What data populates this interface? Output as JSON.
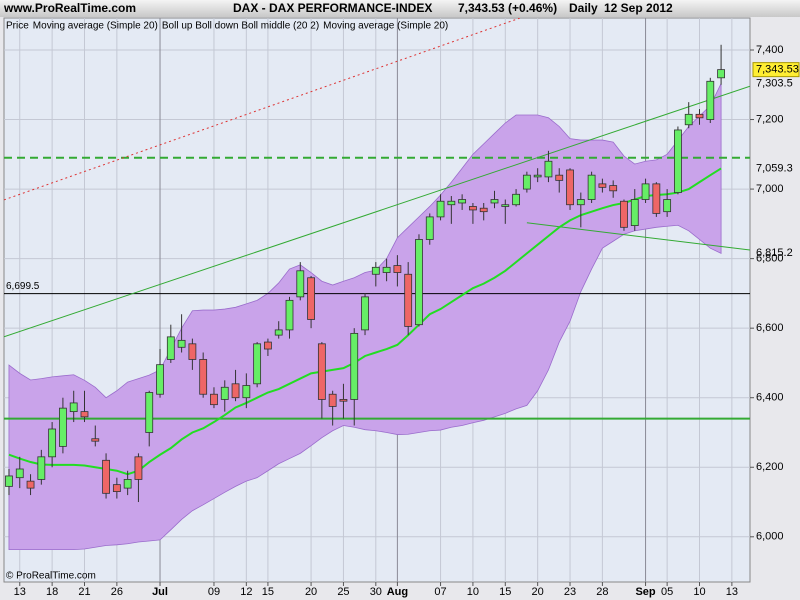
{
  "chart_data": {
    "type": "candlestick",
    "site": "www.ProRealTime.com",
    "title": "DAX - DAX PERFORMANCE-INDEX",
    "quote": "7,343.53 (+0.46%)",
    "period": "Daily",
    "date": "12 Sep 2012",
    "footer": "© ProRealTime.com",
    "legend": [
      {
        "name": "Price",
        "color": "#000000"
      },
      {
        "name": "Moving average (Simple 20)",
        "color": "#e05050"
      },
      {
        "name": "Boll up Boll down Boll middle (20 2)",
        "color": "#8a2be2"
      },
      {
        "name": "Moving average (Simple 20)",
        "color": "#22cc22"
      }
    ],
    "open": [
      6145,
      6170,
      6160,
      6165,
      6230,
      6260,
      6360,
      6360,
      6282,
      6220,
      6150,
      6140,
      6230,
      6300,
      6410,
      6510,
      6545,
      6555,
      6510,
      6410,
      6395,
      6440,
      6400,
      6440,
      6560,
      6580,
      6595,
      6690,
      6745,
      6555,
      6410,
      6395,
      6395,
      6595,
      6755,
      6760,
      6780,
      6755,
      6610,
      6855,
      6920,
      6955,
      6960,
      6950,
      6945,
      6960,
      6950,
      6955,
      7000,
      7035,
      7035,
      7040,
      7055,
      6955,
      6970,
      7015,
      7010,
      6965,
      6895,
      6970,
      7015,
      6935,
      6990,
      7185,
      7215,
      7200,
      7320
    ],
    "high": [
      6195,
      6230,
      6180,
      6250,
      6330,
      6400,
      6420,
      6420,
      6320,
      6240,
      6170,
      6190,
      6240,
      6420,
      6540,
      6610,
      6640,
      6570,
      6530,
      6430,
      6450,
      6480,
      6470,
      6560,
      6570,
      6620,
      6690,
      6790,
      6750,
      6560,
      6420,
      6440,
      6600,
      6700,
      6790,
      6800,
      6810,
      6790,
      6870,
      6930,
      6985,
      6980,
      6985,
      6960,
      6960,
      6995,
      6970,
      7000,
      7050,
      7060,
      7110,
      7060,
      7060,
      6990,
      7050,
      7030,
      7025,
      6970,
      7000,
      7030,
      7020,
      7000,
      7180,
      7250,
      7230,
      7320,
      7415
    ],
    "low": [
      6120,
      6140,
      6120,
      6150,
      6200,
      6240,
      6330,
      6330,
      6260,
      6110,
      6110,
      6120,
      6100,
      6260,
      6400,
      6500,
      6530,
      6480,
      6400,
      6370,
      6360,
      6390,
      6370,
      6430,
      6520,
      6570,
      6570,
      6680,
      6600,
      6340,
      6320,
      6340,
      6320,
      6580,
      6720,
      6735,
      6720,
      6580,
      6605,
      6840,
      6910,
      6900,
      6940,
      6900,
      6910,
      6945,
      6900,
      6950,
      6990,
      7020,
      7020,
      6990,
      6940,
      6890,
      6960,
      6990,
      6975,
      6880,
      6880,
      6960,
      6920,
      6920,
      6985,
      7175,
      7185,
      7190,
      7300
    ],
    "close": [
      6175,
      6195,
      6140,
      6230,
      6310,
      6370,
      6385,
      6345,
      6275,
      6125,
      6130,
      6165,
      6165,
      6415,
      6495,
      6575,
      6565,
      6510,
      6410,
      6380,
      6430,
      6400,
      6435,
      6555,
      6540,
      6595,
      6680,
      6765,
      6625,
      6395,
      6375,
      6390,
      6585,
      6690,
      6775,
      6775,
      6760,
      6605,
      6855,
      6920,
      6965,
      6965,
      6970,
      6940,
      6935,
      6970,
      6955,
      6985,
      7040,
      7040,
      7080,
      7025,
      6955,
      6970,
      7040,
      7005,
      6995,
      6890,
      6970,
      7015,
      6930,
      6970,
      7170,
      7215,
      7205,
      7310,
      7343.53
    ],
    "up_color": "#66ee66",
    "down_color": "#ee6666",
    "bollinger": {
      "color": "#c9a3ea",
      "upper": [
        6494,
        6470,
        6451,
        6455,
        6460,
        6463,
        6466,
        6450,
        6430,
        6400,
        6420,
        6445,
        6455,
        6465,
        6480,
        6540,
        6600,
        6650,
        6652,
        6652,
        6655,
        6660,
        6670,
        6680,
        6700,
        6730,
        6770,
        6782,
        6760,
        6735,
        6724,
        6735,
        6745,
        6760,
        6767,
        6800,
        6860,
        6890,
        6920,
        6950,
        6983,
        7020,
        7060,
        7100,
        7130,
        7160,
        7190,
        7213,
        7213,
        7213,
        7205,
        7180,
        7145,
        7141,
        7141,
        7141,
        7135,
        7095,
        7072,
        7080,
        7084,
        7100,
        7140,
        7180,
        7210,
        7240,
        7303.5
      ],
      "lower": [
        5963,
        5963,
        5963,
        5963,
        5963,
        5963,
        5963,
        5965,
        5970,
        5975,
        5977,
        5980,
        5985,
        5988,
        5991,
        6020,
        6050,
        6075,
        6092,
        6110,
        6128,
        6145,
        6160,
        6170,
        6190,
        6210,
        6225,
        6240,
        6262,
        6285,
        6305,
        6320,
        6315,
        6308,
        6305,
        6300,
        6294,
        6295,
        6300,
        6305,
        6307,
        6315,
        6320,
        6328,
        6335,
        6345,
        6355,
        6368,
        6378,
        6420,
        6480,
        6560,
        6620,
        6705,
        6770,
        6830,
        6850,
        6870,
        6880,
        6885,
        6890,
        6893,
        6896,
        6880,
        6855,
        6830,
        6815.2
      ]
    },
    "ma20": {
      "color": "#22dd22",
      "values": [
        6236,
        6225,
        6215,
        6208,
        6207,
        6207,
        6207,
        6205,
        6200,
        6195,
        6190,
        6180,
        6190,
        6215,
        6236,
        6255,
        6280,
        6300,
        6312,
        6330,
        6350,
        6372,
        6385,
        6400,
        6415,
        6425,
        6440,
        6455,
        6470,
        6475,
        6480,
        6485,
        6500,
        6520,
        6530,
        6540,
        6552,
        6580,
        6610,
        6640,
        6655,
        6675,
        6695,
        6715,
        6728,
        6745,
        6765,
        6790,
        6815,
        6840,
        6865,
        6890,
        6910,
        6925,
        6935,
        6945,
        6954,
        6960,
        6970,
        6980,
        6983,
        6985,
        6990,
        7000,
        7020,
        7040,
        7059.3
      ]
    },
    "price_labels": [
      {
        "value": 7343.53,
        "label": "7,343.53",
        "highlight": true
      },
      {
        "value": 7303.5,
        "label": "7,303.5"
      },
      {
        "value": 7059.3,
        "label": "7,059.3"
      },
      {
        "value": 6815.2,
        "label": "6,815.2"
      }
    ],
    "hlines": [
      {
        "value": 6699.5,
        "label": "6,699.5",
        "color": "#000000"
      },
      {
        "value": 6340,
        "color": "#33aa33"
      },
      {
        "value": 7090,
        "color": "#33aa33",
        "dashed": true
      }
    ],
    "trendlines": [
      {
        "points": [
          [
            0,
            6974
          ],
          [
            46,
            7477
          ]
        ],
        "color": "#dd3333",
        "dashed": true
      },
      {
        "points": [
          [
            0,
            6580
          ],
          [
            66,
            7268
          ]
        ],
        "color": "#33aa33"
      },
      {
        "points": [
          [
            48,
            6903
          ],
          [
            66,
            6835
          ]
        ],
        "color": "#33aa33"
      }
    ],
    "xlim": [
      -0.46,
      68.68
    ],
    "ylim": [
      5870,
      7492
    ],
    "xticks": [
      {
        "value": 1,
        "label": "13"
      },
      {
        "value": 4,
        "label": "18"
      },
      {
        "value": 7,
        "label": "21"
      },
      {
        "value": 10,
        "label": "26"
      },
      {
        "value": 14,
        "label": "Jul"
      },
      {
        "value": 19,
        "label": "09"
      },
      {
        "value": 22,
        "label": "12"
      },
      {
        "value": 24,
        "label": "15"
      },
      {
        "value": 28,
        "label": "20"
      },
      {
        "value": 31,
        "label": "25"
      },
      {
        "value": 34,
        "label": "30"
      },
      {
        "value": 36,
        "label": "Aug"
      },
      {
        "value": 40,
        "label": "07"
      },
      {
        "value": 43,
        "label": "10"
      },
      {
        "value": 46,
        "label": "15"
      },
      {
        "value": 49,
        "label": "20"
      },
      {
        "value": 52,
        "label": "23"
      },
      {
        "value": 55,
        "label": "28"
      },
      {
        "value": 59,
        "label": "Sep"
      },
      {
        "value": 61,
        "label": "05"
      },
      {
        "value": 64,
        "label": "10"
      },
      {
        "value": 67,
        "label": "13"
      }
    ],
    "month_ticks": [
      14,
      36,
      59
    ],
    "yticks": [
      {
        "value": 6000,
        "label": "6,000"
      },
      {
        "value": 6200,
        "label": "6,200"
      },
      {
        "value": 6400,
        "label": "6,400"
      },
      {
        "value": 6600,
        "label": "6,600"
      },
      {
        "value": 6800,
        "label": "6,800"
      },
      {
        "value": 7000,
        "label": "7,000"
      },
      {
        "value": 7200,
        "label": "7,200"
      },
      {
        "value": 7400,
        "label": "7,400"
      }
    ],
    "grid": true
  }
}
